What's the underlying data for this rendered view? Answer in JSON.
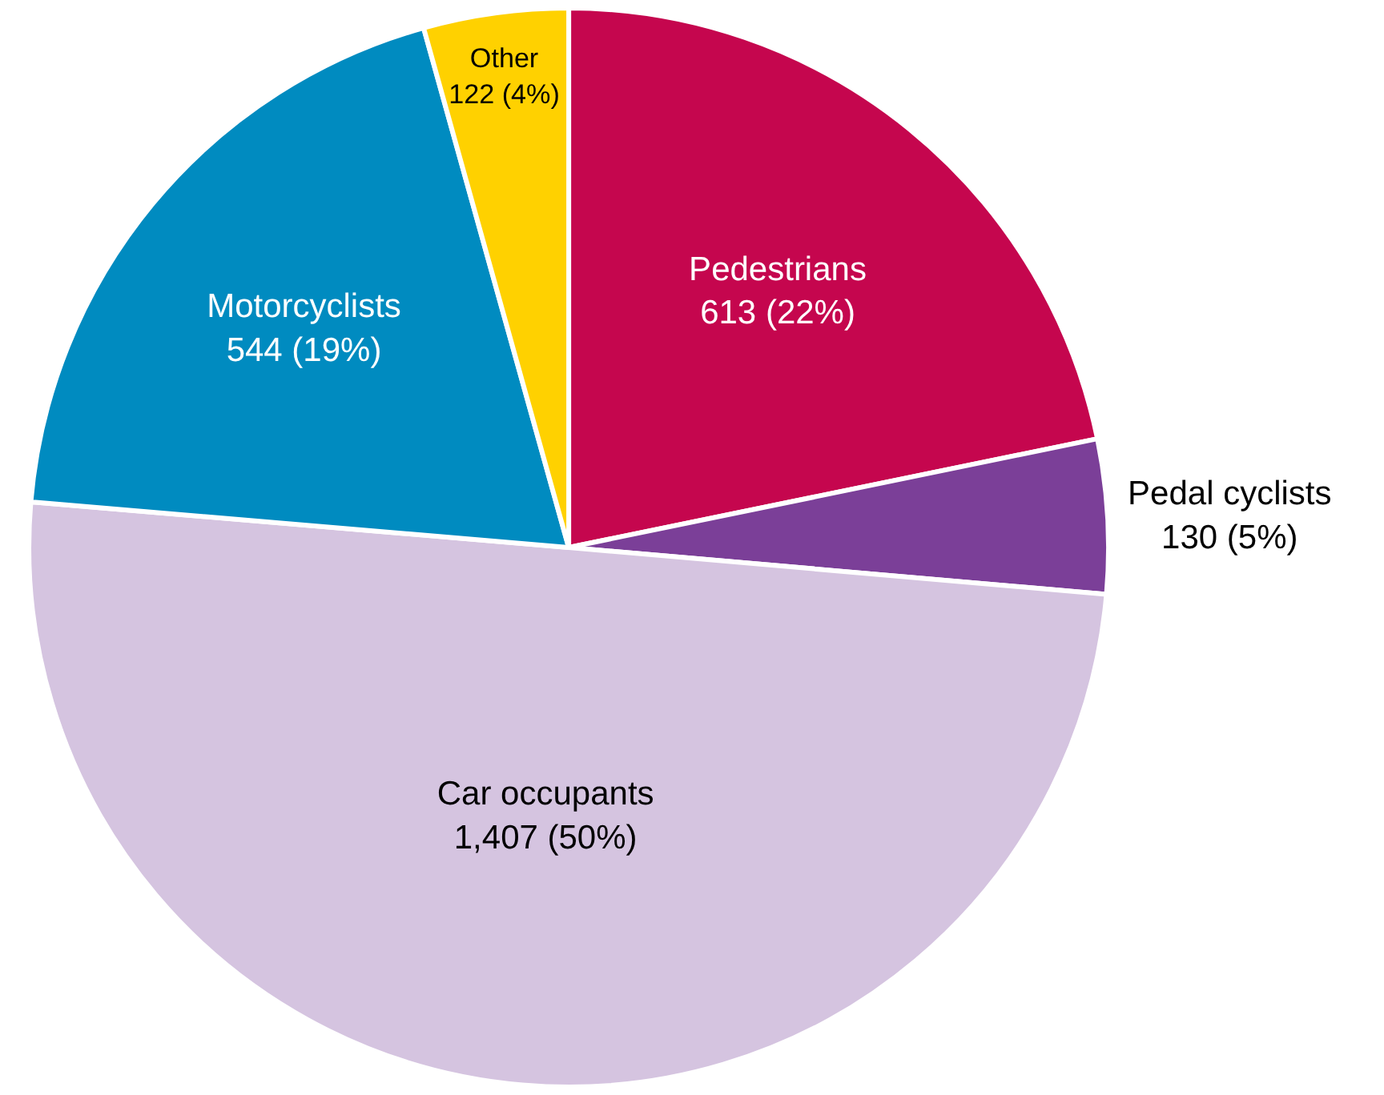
{
  "chart_data": {
    "type": "pie",
    "categories": [
      "Pedestrians",
      "Pedal cyclists",
      "Car occupants",
      "Motorcyclists",
      "Other"
    ],
    "values": [
      613,
      130,
      1407,
      544,
      122
    ],
    "value_labels": [
      "613 (22%)",
      "130 (5%)",
      "1,407 (50%)",
      "544 (19%)",
      "122 (4%)"
    ],
    "colors": [
      "#c5064e",
      "#7b3f98",
      "#d5c4e0",
      "#008bc0",
      "#ffd100"
    ]
  }
}
